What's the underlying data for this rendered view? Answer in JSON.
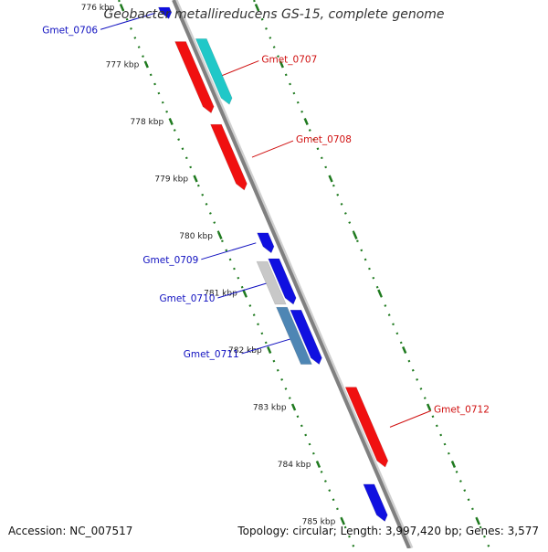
{
  "map": {
    "title": "Geobacter metallireducens GS-15, complete genome",
    "accession": "Accession: NC_007517",
    "summary": "Topology: circular; Length: 3,997,420 bp; Genes: 3,577"
  },
  "ruler": {
    "ticks": [
      {
        "label": "776 kbp",
        "kbp": 776
      },
      {
        "label": "777 kbp",
        "kbp": 777
      },
      {
        "label": "778 kbp",
        "kbp": 778
      },
      {
        "label": "779 kbp",
        "kbp": 779
      },
      {
        "label": "780 kbp",
        "kbp": 780
      },
      {
        "label": "781 kbp",
        "kbp": 781
      },
      {
        "label": "782 kbp",
        "kbp": 782
      },
      {
        "label": "783 kbp",
        "kbp": 783
      },
      {
        "label": "784 kbp",
        "kbp": 784
      },
      {
        "label": "785 kbp",
        "kbp": 785
      }
    ]
  },
  "genes": [
    {
      "label": "Gmet_0706",
      "start_kbp": 776.0,
      "end_kbp": 776.2,
      "lane": "inner-outer",
      "direction": "forward",
      "color": "#1010e0",
      "label_side": "left"
    },
    {
      "label": "Gmet_0707",
      "start_kbp": 776.6,
      "end_kbp": 777.85,
      "lane": "inner",
      "direction": "forward",
      "color": "#f01010",
      "label_side": "right"
    },
    {
      "label": "",
      "start_kbp": 776.55,
      "end_kbp": 777.7,
      "lane": "outer",
      "direction": "forward",
      "color": "#20c8c8",
      "label_side": "none"
    },
    {
      "label": "Gmet_0708",
      "start_kbp": 778.05,
      "end_kbp": 779.2,
      "lane": "inner",
      "direction": "forward",
      "color": "#f01010",
      "label_side": "right"
    },
    {
      "label": "Gmet_0709",
      "start_kbp": 779.95,
      "end_kbp": 780.3,
      "lane": "inner",
      "direction": "forward",
      "color": "#1010e0",
      "label_side": "left"
    },
    {
      "label": "Gmet_0710",
      "start_kbp": 780.4,
      "end_kbp": 781.2,
      "lane": "inner",
      "direction": "forward",
      "color": "#1010e0",
      "label_side": "left"
    },
    {
      "label": "",
      "start_kbp": 780.45,
      "end_kbp": 781.2,
      "lane": "innermost",
      "direction": "none",
      "color": "#c8c8c8",
      "label_side": "none"
    },
    {
      "label": "Gmet_0711",
      "start_kbp": 781.3,
      "end_kbp": 782.25,
      "lane": "inner",
      "direction": "forward",
      "color": "#1010e0",
      "label_side": "left"
    },
    {
      "label": "",
      "start_kbp": 781.25,
      "end_kbp": 782.25,
      "lane": "innermost",
      "direction": "none",
      "color": "#4e86b4",
      "label_side": "none"
    },
    {
      "label": "Gmet_0712",
      "start_kbp": 782.65,
      "end_kbp": 784.05,
      "lane": "outer",
      "direction": "forward",
      "color": "#f01010",
      "label_side": "right"
    },
    {
      "label": "",
      "start_kbp": 784.35,
      "end_kbp": 785.0,
      "lane": "inner-outer",
      "direction": "forward",
      "color": "#1010e0",
      "label_side": "none"
    }
  ],
  "colors": {
    "backbone": "#808080",
    "tick_green": "#1f7a1f",
    "label_blue": "#1010c0",
    "label_red": "#d01010"
  }
}
